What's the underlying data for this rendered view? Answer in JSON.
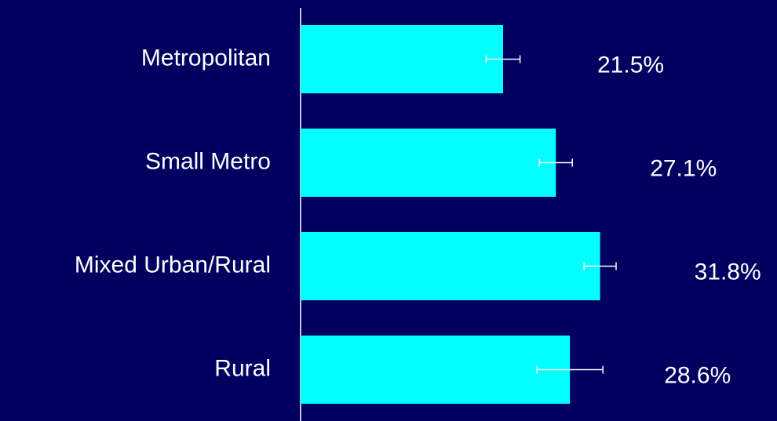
{
  "chart_data": {
    "type": "bar",
    "orientation": "horizontal",
    "categories": [
      "Metropolitan",
      "Small Metro",
      "Mixed Urban/Rural",
      "Rural"
    ],
    "values": [
      21.5,
      27.1,
      31.8,
      28.6
    ],
    "value_labels": [
      "21.5%",
      "27.1%",
      "31.8%",
      "28.6%"
    ],
    "errors": [
      1.8,
      1.75,
      1.7,
      3.5
    ],
    "color": "#00ffff",
    "error_color": "#ffffff",
    "background": "#000060"
  }
}
